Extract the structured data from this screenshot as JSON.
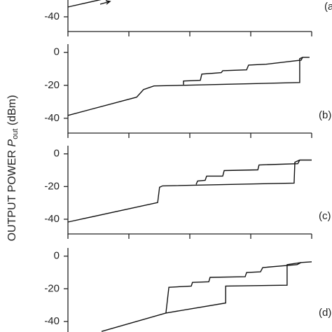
{
  "ylabel": {
    "text": "OUTPUT POWER",
    "symbol": "P",
    "sub": "out",
    "unit": "(dBm)"
  },
  "chart_data": [
    {
      "type": "line",
      "label": "(a)",
      "xlim": [
        0,
        100
      ],
      "xticks": [
        0,
        25,
        50,
        75,
        100
      ],
      "ylim": [
        -49,
        5
      ],
      "yticks": [
        -40
      ],
      "series": [
        {
          "color": "#111111",
          "x": [
            0,
            15.2
          ],
          "values": [
            -34.0,
            -28.9
          ]
        }
      ]
    },
    {
      "type": "line",
      "label": "(b)",
      "xlim": [
        0,
        100
      ],
      "xticks": [
        0,
        25,
        50,
        75,
        100
      ],
      "ylim": [
        -49,
        5
      ],
      "yticks": [
        0,
        -20,
        -40
      ],
      "series": [
        {
          "color": "#111111",
          "x": [
            0,
            28.2,
            31.0,
            35.3,
            46.8,
            95.1,
            95.1,
            96.3,
            99.1
          ],
          "values": [
            -38.3,
            -27.2,
            -22.6,
            -20.4,
            -20.0,
            -18.3,
            -3.8,
            -3.0,
            -3.0
          ]
        },
        {
          "color": "#111111",
          "x": [
            96.3,
            95.7,
            81.3,
            74.1,
            73.3,
            63.5,
            62.9,
            54.9,
            54.3,
            47.4,
            47.4
          ],
          "values": [
            -3.0,
            -4.7,
            -7.2,
            -7.7,
            -10.6,
            -11.1,
            -12.3,
            -13.2,
            -17.0,
            -17.4,
            -19.6
          ]
        }
      ]
    },
    {
      "type": "line",
      "label": "(c)",
      "xlim": [
        0,
        100
      ],
      "xticks": [
        0,
        25,
        50,
        75,
        100
      ],
      "ylim": [
        -49,
        5
      ],
      "yticks": [
        0,
        -20,
        -40
      ],
      "series": [
        {
          "color": "#111111",
          "x": [
            0,
            36.8,
            37.6,
            38.8,
            92.8,
            93.1,
            95.1,
            100
          ],
          "values": [
            -41.7,
            -29.8,
            -20.4,
            -19.6,
            -17.9,
            -5.1,
            -3.8,
            -3.8
          ]
        },
        {
          "color": "#111111",
          "x": [
            95.1,
            94.3,
            78.4,
            77.9,
            64.1,
            63.5,
            56.9,
            56.3,
            53.2,
            52.6
          ],
          "values": [
            -3.8,
            -6.0,
            -6.8,
            -9.8,
            -10.2,
            -13.6,
            -13.6,
            -16.2,
            -16.6,
            -18.7
          ]
        }
      ]
    },
    {
      "type": "line",
      "label": "(d)",
      "xlim": [
        0,
        100
      ],
      "xticks": [
        0,
        25,
        50,
        75,
        100
      ],
      "ylim": [
        -49,
        5
      ],
      "yticks": [
        0,
        -20,
        -40
      ],
      "series": [
        {
          "color": "#111111",
          "x": [
            13.8,
            40.2,
            64.7,
            64.7,
            89.9,
            89.9,
            95.7,
            100
          ],
          "values": [
            -46.1,
            -34.8,
            -28.7,
            -18.3,
            -17.8,
            -5.2,
            -3.9,
            -3.5
          ]
        },
        {
          "color": "#111111",
          "x": [
            95.7,
            94.0,
            79.9,
            79.0,
            73.3,
            72.7,
            58.3,
            57.8,
            51.1,
            50.6,
            41.4,
            40.2
          ],
          "values": [
            -3.9,
            -5.2,
            -7.0,
            -9.6,
            -10.0,
            -12.6,
            -13.0,
            -15.7,
            -16.1,
            -18.3,
            -19.1,
            -34.8
          ]
        }
      ]
    }
  ]
}
